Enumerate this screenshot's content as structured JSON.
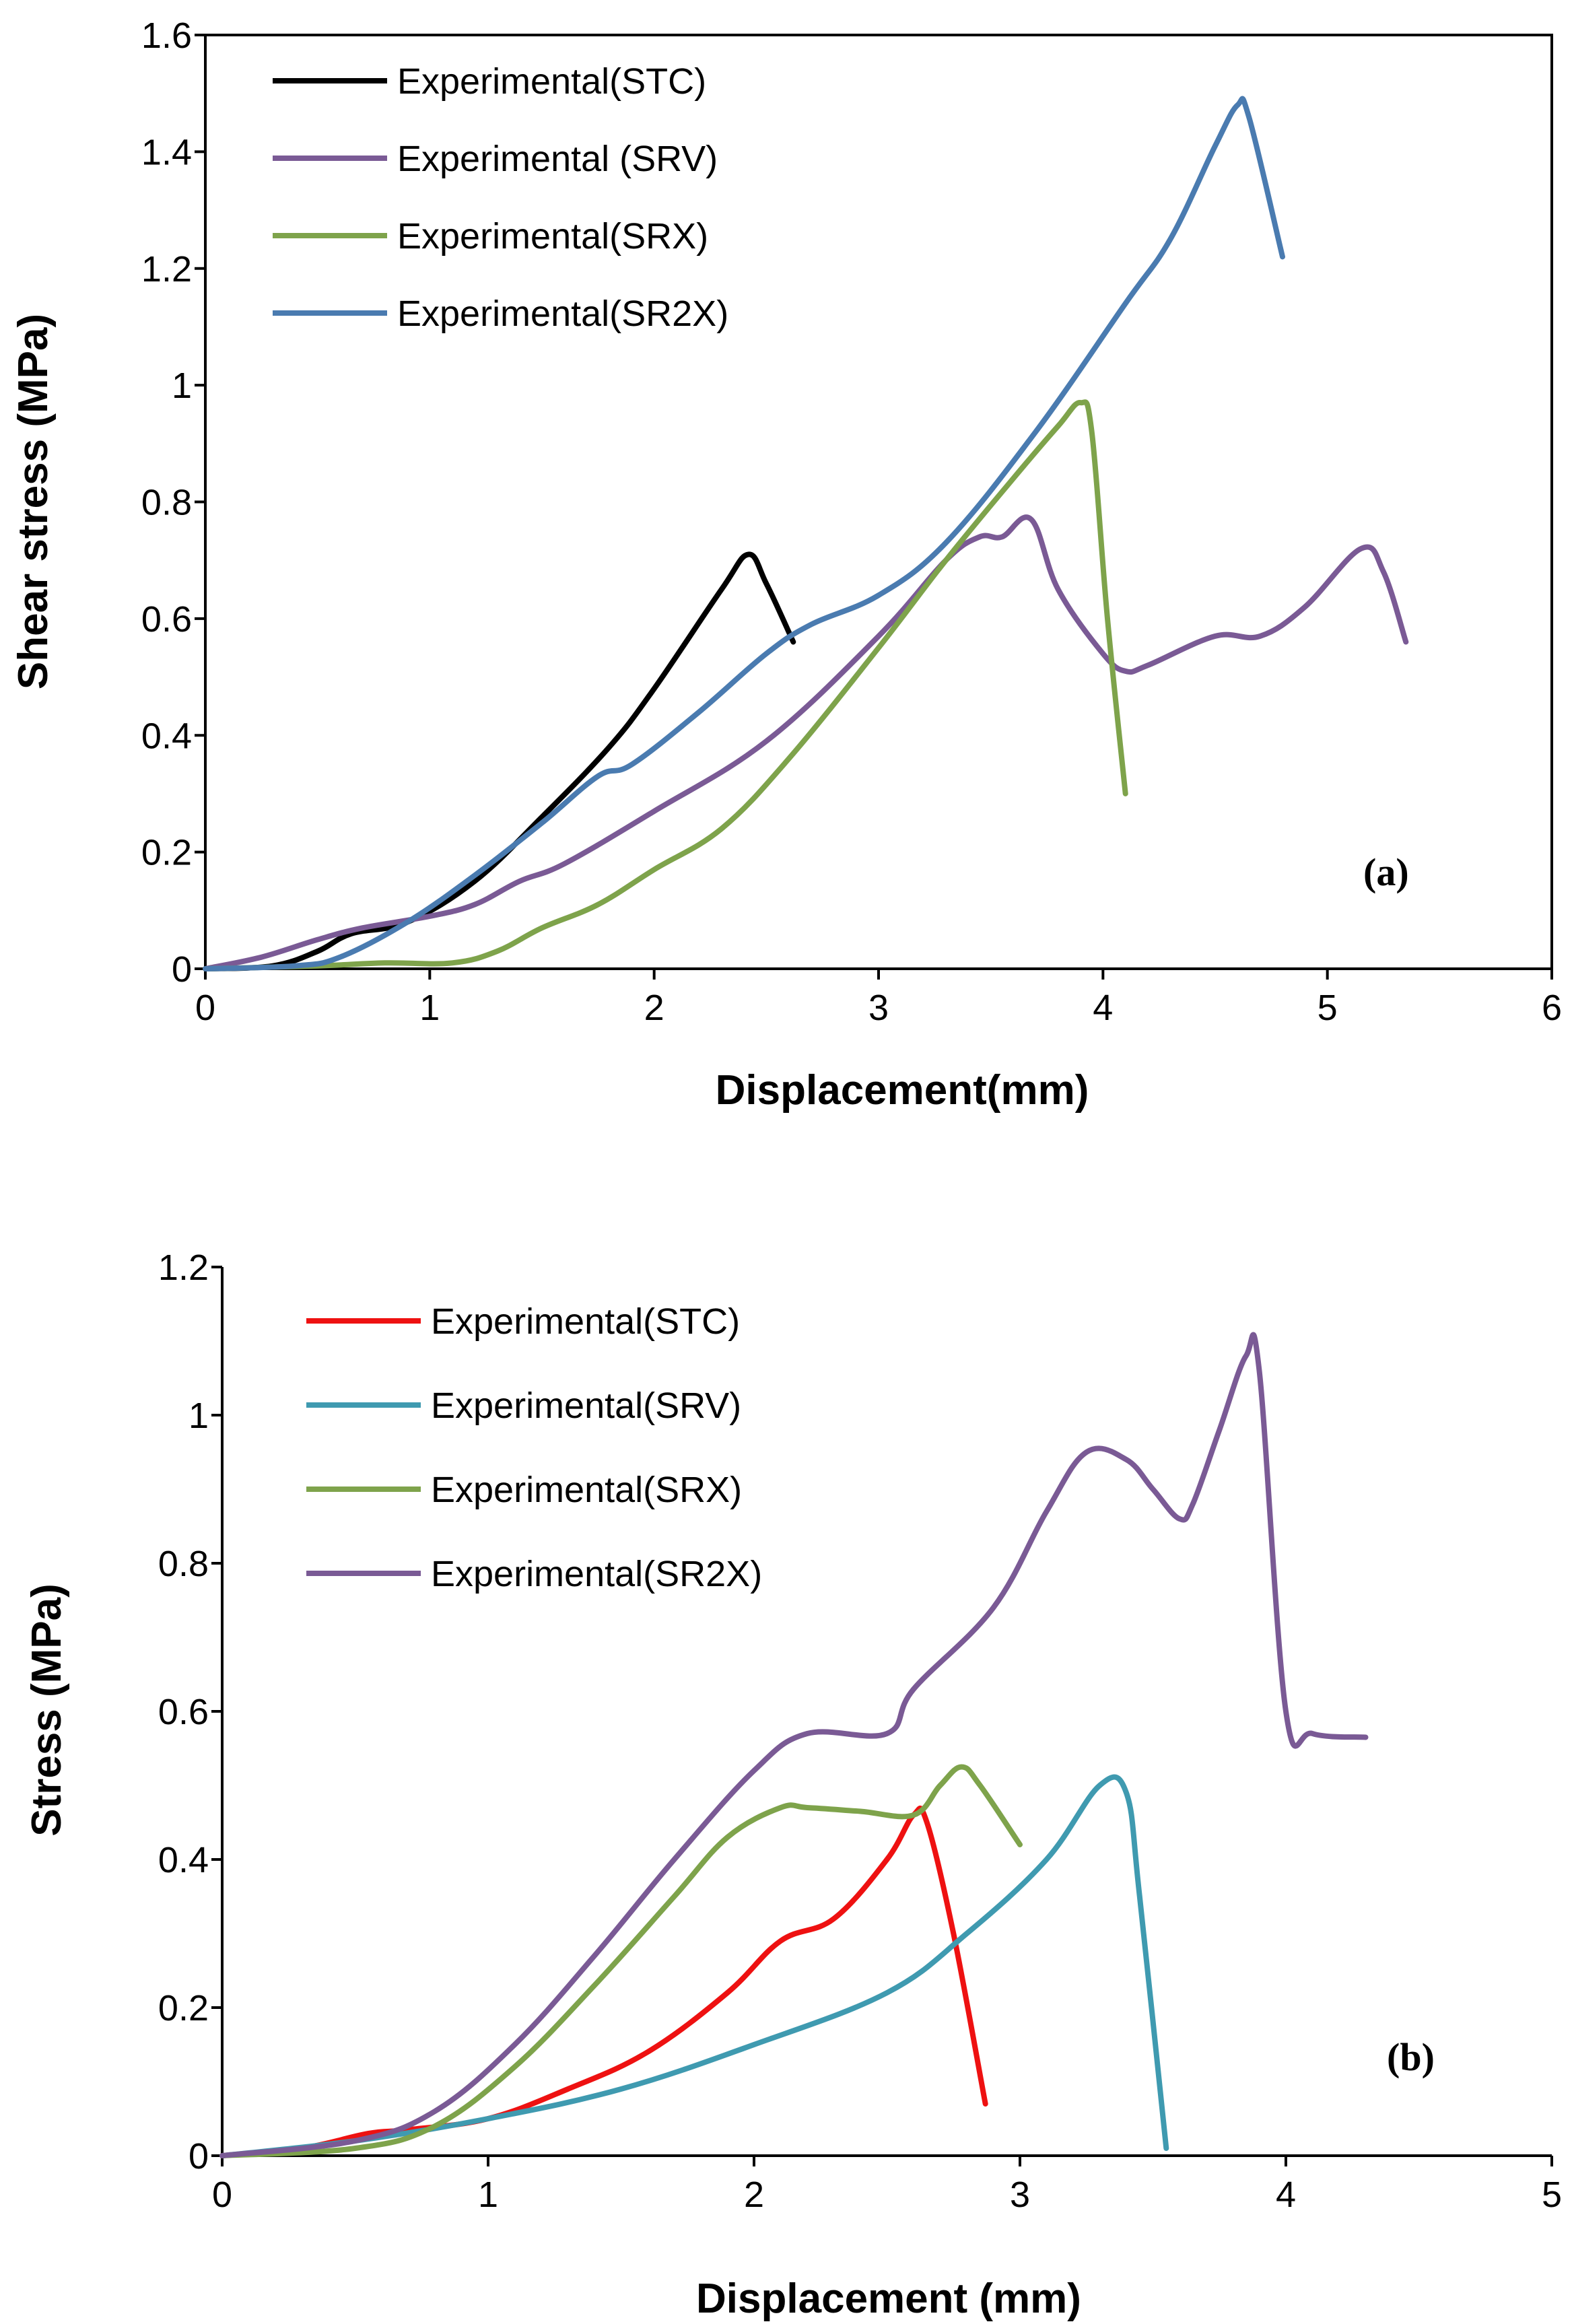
{
  "chart_data": [
    {
      "type": "line",
      "panel_label": "(a)",
      "xlabel": "Displacement(mm)",
      "ylabel": "Shear stress (MPa)",
      "xlim": [
        0,
        6
      ],
      "ylim": [
        0,
        1.6
      ],
      "xticks": [
        "0",
        "1",
        "2",
        "3",
        "4",
        "5",
        "6"
      ],
      "yticks": [
        "0",
        "0.2",
        "0.4",
        "0.6",
        "0.8",
        "1",
        "1.2",
        "1.4",
        "1.6"
      ],
      "legend_position": "top-left",
      "boxed": true,
      "series": [
        {
          "name": "Experimental(STC)",
          "color": "#000000",
          "x": [
            0,
            0.3,
            0.5,
            0.65,
            0.9,
            1.2,
            1.5,
            1.8,
            2.0,
            2.3,
            2.42,
            2.5,
            2.62
          ],
          "y": [
            0,
            0.005,
            0.03,
            0.06,
            0.08,
            0.15,
            0.26,
            0.38,
            0.48,
            0.65,
            0.71,
            0.66,
            0.56
          ]
        },
        {
          "name": "Experimental (SRV)",
          "color": "#7a5a95",
          "x": [
            0,
            0.25,
            0.5,
            0.7,
            1.0,
            1.2,
            1.4,
            1.6,
            2.0,
            2.5,
            3.0,
            3.3,
            3.45,
            3.55,
            3.68,
            3.8,
            4.0,
            4.1,
            4.2,
            4.5,
            4.7,
            4.9,
            5.15,
            5.25,
            5.35
          ],
          "y": [
            0,
            0.02,
            0.05,
            0.07,
            0.09,
            0.11,
            0.15,
            0.18,
            0.27,
            0.39,
            0.57,
            0.7,
            0.74,
            0.74,
            0.77,
            0.65,
            0.54,
            0.51,
            0.52,
            0.57,
            0.57,
            0.62,
            0.72,
            0.68,
            0.56
          ]
        },
        {
          "name": "Experimental(SRX)",
          "color": "#7ea34b",
          "x": [
            0,
            0.5,
            0.8,
            1.1,
            1.3,
            1.5,
            1.75,
            2.0,
            2.3,
            2.6,
            3.0,
            3.3,
            3.6,
            3.8,
            3.9,
            3.95,
            4.02,
            4.1
          ],
          "y": [
            0,
            0.005,
            0.01,
            0.01,
            0.03,
            0.07,
            0.11,
            0.17,
            0.24,
            0.36,
            0.55,
            0.7,
            0.84,
            0.93,
            0.97,
            0.92,
            0.6,
            0.3
          ]
        },
        {
          "name": "Experimental(SR2X)",
          "color": "#4a7bb0",
          "x": [
            0,
            0.4,
            0.6,
            0.9,
            1.2,
            1.5,
            1.75,
            1.9,
            2.2,
            2.5,
            2.7,
            3.0,
            3.3,
            3.7,
            4.1,
            4.3,
            4.5,
            4.6,
            4.65,
            4.8
          ],
          "y": [
            0,
            0.005,
            0.02,
            0.08,
            0.16,
            0.25,
            0.33,
            0.35,
            0.44,
            0.54,
            0.59,
            0.64,
            0.73,
            0.92,
            1.14,
            1.25,
            1.41,
            1.48,
            1.46,
            1.22
          ]
        }
      ]
    },
    {
      "type": "line",
      "panel_label": "(b)",
      "xlabel": "Displacement (mm)",
      "ylabel": "Stress (MPa)",
      "xlim": [
        0,
        5
      ],
      "ylim": [
        0,
        1.2
      ],
      "xticks": [
        "0",
        "1",
        "2",
        "3",
        "4",
        "5"
      ],
      "yticks": [
        "0",
        "0.2",
        "0.4",
        "0.6",
        "0.8",
        "1",
        "1.2"
      ],
      "legend_position": "top-left",
      "boxed": false,
      "series": [
        {
          "name": "Experimental(STC)",
          "color": "#ee1111",
          "x": [
            0,
            0.3,
            0.55,
            0.7,
            1.0,
            1.3,
            1.6,
            1.9,
            2.1,
            2.3,
            2.5,
            2.6,
            2.65,
            2.75,
            2.87
          ],
          "y": [
            0,
            0.01,
            0.03,
            0.035,
            0.05,
            0.09,
            0.14,
            0.22,
            0.29,
            0.32,
            0.4,
            0.46,
            0.45,
            0.3,
            0.07
          ]
        },
        {
          "name": "Experimental(SRV)",
          "color": "#3f9ab0",
          "x": [
            0,
            0.5,
            1.0,
            1.5,
            2.0,
            2.5,
            2.8,
            3.1,
            3.3,
            3.4,
            3.45,
            3.55
          ],
          "y": [
            0,
            0.02,
            0.05,
            0.09,
            0.15,
            0.22,
            0.3,
            0.4,
            0.5,
            0.49,
            0.35,
            0.01
          ]
        },
        {
          "name": "Experimental(SRX)",
          "color": "#7ea34b",
          "x": [
            0,
            0.5,
            0.8,
            1.1,
            1.4,
            1.7,
            1.9,
            2.1,
            2.2,
            2.4,
            2.6,
            2.7,
            2.78,
            2.85,
            3.0
          ],
          "y": [
            0,
            0.01,
            0.04,
            0.12,
            0.23,
            0.35,
            0.43,
            0.47,
            0.47,
            0.465,
            0.46,
            0.5,
            0.525,
            0.5,
            0.42
          ]
        },
        {
          "name": "Experimental(SR2X)",
          "color": "#7a5a95",
          "x": [
            0,
            0.5,
            0.8,
            1.1,
            1.4,
            1.7,
            2.0,
            2.2,
            2.5,
            2.6,
            2.9,
            3.1,
            3.25,
            3.4,
            3.5,
            3.6,
            3.65,
            3.75,
            3.85,
            3.9,
            4.0,
            4.1,
            4.3
          ],
          "y": [
            0,
            0.02,
            0.06,
            0.15,
            0.27,
            0.4,
            0.52,
            0.57,
            0.57,
            0.63,
            0.74,
            0.87,
            0.95,
            0.94,
            0.9,
            0.86,
            0.88,
            0.98,
            1.08,
            1.06,
            0.6,
            0.57,
            0.565
          ]
        }
      ]
    }
  ]
}
